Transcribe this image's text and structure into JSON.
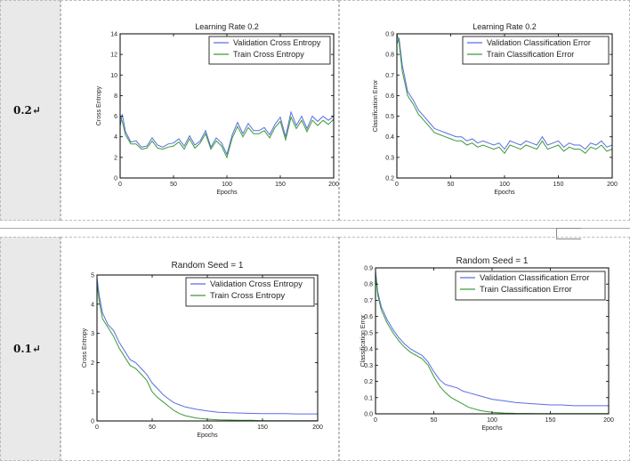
{
  "rows": [
    {
      "label": "0.2↵"
    },
    {
      "label": "0.1↵"
    }
  ],
  "charts": [
    {
      "type": "line",
      "title": "Learning Rate 0.2",
      "xlabel": "Epochs",
      "ylabel": "Cross Entropy",
      "xlim": [
        0,
        200
      ],
      "ylim": [
        0,
        14
      ],
      "xticks": [
        "0",
        "50",
        "100",
        "150",
        "200"
      ],
      "yticks": [
        "0",
        "2",
        "4",
        "6",
        "8",
        "10",
        "12",
        "14"
      ],
      "legend": [
        "Validation Cross Entropy",
        "Train Cross Entropy"
      ],
      "legend_position": "top-right"
    },
    {
      "type": "line",
      "title": "Learning Rate 0.2",
      "xlabel": "Epochs",
      "ylabel": "Classification Error",
      "xlim": [
        0,
        200
      ],
      "ylim": [
        0.2,
        0.9
      ],
      "xticks": [
        "0",
        "50",
        "100",
        "150",
        "200"
      ],
      "yticks": [
        "0.2",
        "0.3",
        "0.4",
        "0.5",
        "0.6",
        "0.7",
        "0.8",
        "0.9"
      ],
      "legend": [
        "Validation Classification Error",
        "Train Classification Error"
      ],
      "legend_position": "top-right"
    },
    {
      "type": "line",
      "title": "Random Seed = 1",
      "xlabel": "Epochs",
      "ylabel": "Cross Entropy",
      "xlim": [
        0,
        200
      ],
      "ylim": [
        0,
        5
      ],
      "xticks": [
        "0",
        "50",
        "100",
        "150",
        "200"
      ],
      "yticks": [
        "0",
        "1",
        "2",
        "3",
        "4",
        "5"
      ],
      "legend": [
        "Validation Cross Entropy",
        "Train Cross Entropy"
      ],
      "legend_position": "top-right"
    },
    {
      "type": "line",
      "title": "Random Seed = 1",
      "xlabel": "Epochs",
      "ylabel": "Classification Error",
      "xlim": [
        0,
        200
      ],
      "ylim": [
        0.0,
        0.9
      ],
      "xticks": [
        "0",
        "50",
        "100",
        "150",
        "200"
      ],
      "yticks": [
        "0.0",
        "0.1",
        "0.2",
        "0.3",
        "0.4",
        "0.5",
        "0.6",
        "0.7",
        "0.8",
        "0.9"
      ],
      "legend": [
        "Validation Classification Error",
        "Train Classification Error"
      ],
      "legend_position": "top-right"
    }
  ],
  "chart_data": [
    {
      "type": "line",
      "title": "Learning Rate 0.2",
      "xlabel": "Epochs",
      "ylabel": "Cross Entropy",
      "xlim": [
        0,
        200
      ],
      "ylim": [
        0,
        14
      ],
      "legend_position": "top-right",
      "x": [
        0,
        2,
        5,
        10,
        15,
        20,
        25,
        30,
        35,
        40,
        45,
        50,
        55,
        60,
        65,
        70,
        75,
        80,
        85,
        90,
        95,
        100,
        105,
        110,
        115,
        120,
        125,
        130,
        135,
        140,
        145,
        150,
        155,
        160,
        165,
        170,
        175,
        180,
        185,
        190,
        195,
        200
      ],
      "series": [
        {
          "name": "Validation Cross Entropy",
          "color": "#5b6de0",
          "values": [
            5.0,
            6.2,
            4.5,
            3.5,
            3.6,
            3.0,
            3.1,
            3.9,
            3.2,
            3.0,
            3.3,
            3.4,
            3.8,
            3.1,
            4.1,
            3.2,
            3.6,
            4.6,
            3.0,
            3.9,
            3.4,
            2.3,
            4.2,
            5.4,
            4.3,
            5.3,
            4.6,
            4.6,
            4.9,
            4.2,
            5.2,
            5.9,
            4.0,
            6.4,
            5.1,
            6.0,
            4.8,
            6.0,
            5.5,
            6.0,
            5.6,
            6.0
          ]
        },
        {
          "name": "Train Cross Entropy",
          "color": "#3a9a3a",
          "values": [
            6.0,
            5.5,
            4.2,
            3.3,
            3.3,
            2.8,
            2.9,
            3.6,
            2.9,
            2.8,
            3.0,
            3.1,
            3.5,
            2.8,
            3.8,
            2.9,
            3.4,
            4.3,
            2.8,
            3.6,
            3.1,
            2.0,
            3.9,
            5.0,
            4.0,
            4.9,
            4.3,
            4.3,
            4.6,
            3.9,
            4.9,
            5.5,
            3.7,
            5.9,
            4.8,
            5.6,
            4.5,
            5.6,
            5.1,
            5.6,
            5.2,
            5.7
          ]
        }
      ]
    },
    {
      "type": "line",
      "title": "Learning Rate 0.2",
      "xlabel": "Epochs",
      "ylabel": "Classification Error",
      "xlim": [
        0,
        200
      ],
      "ylim": [
        0.2,
        0.9
      ],
      "legend_position": "top-right",
      "x": [
        0,
        2,
        5,
        10,
        15,
        20,
        25,
        30,
        35,
        40,
        45,
        50,
        55,
        60,
        65,
        70,
        75,
        80,
        85,
        90,
        95,
        100,
        105,
        110,
        115,
        120,
        125,
        130,
        135,
        140,
        145,
        150,
        155,
        160,
        165,
        170,
        175,
        180,
        185,
        190,
        195,
        200
      ],
      "series": [
        {
          "name": "Validation Classification Error",
          "color": "#5b6de0",
          "values": [
            0.85,
            0.88,
            0.75,
            0.62,
            0.58,
            0.53,
            0.5,
            0.47,
            0.44,
            0.43,
            0.42,
            0.41,
            0.4,
            0.4,
            0.38,
            0.39,
            0.37,
            0.38,
            0.37,
            0.36,
            0.37,
            0.34,
            0.38,
            0.37,
            0.36,
            0.38,
            0.37,
            0.36,
            0.4,
            0.36,
            0.37,
            0.38,
            0.35,
            0.37,
            0.36,
            0.36,
            0.34,
            0.37,
            0.36,
            0.38,
            0.35,
            0.36
          ]
        },
        {
          "name": "Train Classification Error",
          "color": "#3a9a3a",
          "values": [
            0.9,
            0.86,
            0.72,
            0.6,
            0.56,
            0.51,
            0.48,
            0.45,
            0.42,
            0.41,
            0.4,
            0.39,
            0.38,
            0.38,
            0.36,
            0.37,
            0.35,
            0.36,
            0.35,
            0.34,
            0.35,
            0.32,
            0.36,
            0.35,
            0.34,
            0.36,
            0.35,
            0.34,
            0.38,
            0.34,
            0.35,
            0.36,
            0.33,
            0.35,
            0.34,
            0.34,
            0.32,
            0.35,
            0.34,
            0.36,
            0.33,
            0.34
          ]
        }
      ]
    },
    {
      "type": "line",
      "title": "Random Seed = 1",
      "xlabel": "Epochs",
      "ylabel": "Cross Entropy",
      "xlim": [
        0,
        200
      ],
      "ylim": [
        0,
        5
      ],
      "legend_position": "top-right",
      "x": [
        0,
        2,
        5,
        10,
        15,
        20,
        25,
        30,
        35,
        40,
        45,
        50,
        55,
        60,
        65,
        70,
        75,
        80,
        90,
        100,
        110,
        120,
        130,
        140,
        150,
        160,
        170,
        180,
        190,
        200
      ],
      "series": [
        {
          "name": "Validation Cross Entropy",
          "color": "#5b6de0",
          "values": [
            4.9,
            4.3,
            3.7,
            3.3,
            3.1,
            2.7,
            2.4,
            2.1,
            2.0,
            1.8,
            1.6,
            1.3,
            1.1,
            0.9,
            0.75,
            0.62,
            0.55,
            0.48,
            0.4,
            0.34,
            0.3,
            0.28,
            0.27,
            0.26,
            0.25,
            0.25,
            0.25,
            0.24,
            0.24,
            0.24
          ]
        },
        {
          "name": "Train Cross Entropy",
          "color": "#3a9a3a",
          "values": [
            4.7,
            4.1,
            3.5,
            3.2,
            2.9,
            2.5,
            2.2,
            1.9,
            1.8,
            1.6,
            1.4,
            1.0,
            0.8,
            0.65,
            0.5,
            0.35,
            0.25,
            0.18,
            0.1,
            0.06,
            0.04,
            0.03,
            0.02,
            0.02,
            0.01,
            0.01,
            0.01,
            0.01,
            0.01,
            0.01
          ]
        }
      ]
    },
    {
      "type": "line",
      "title": "Random Seed = 1",
      "xlabel": "Epochs",
      "ylabel": "Classification Error",
      "xlim": [
        0,
        200
      ],
      "ylim": [
        0.0,
        0.9
      ],
      "legend_position": "top-right",
      "x": [
        0,
        2,
        5,
        10,
        15,
        20,
        25,
        30,
        35,
        40,
        45,
        50,
        55,
        60,
        65,
        70,
        75,
        80,
        90,
        100,
        110,
        120,
        130,
        140,
        150,
        160,
        170,
        180,
        190,
        200
      ],
      "series": [
        {
          "name": "Validation Classification Error",
          "color": "#5b6de0",
          "values": [
            0.88,
            0.75,
            0.66,
            0.58,
            0.52,
            0.47,
            0.43,
            0.4,
            0.38,
            0.36,
            0.32,
            0.26,
            0.21,
            0.18,
            0.17,
            0.16,
            0.14,
            0.13,
            0.11,
            0.09,
            0.08,
            0.07,
            0.065,
            0.06,
            0.055,
            0.055,
            0.05,
            0.05,
            0.05,
            0.05
          ]
        },
        {
          "name": "Train Classification Error",
          "color": "#3a9a3a",
          "values": [
            0.86,
            0.73,
            0.64,
            0.56,
            0.5,
            0.45,
            0.41,
            0.38,
            0.36,
            0.34,
            0.3,
            0.23,
            0.17,
            0.13,
            0.1,
            0.08,
            0.06,
            0.04,
            0.02,
            0.01,
            0.005,
            0.003,
            0.002,
            0.001,
            0.001,
            0.001,
            0.001,
            0.001,
            0.001,
            0.001
          ]
        }
      ]
    }
  ]
}
